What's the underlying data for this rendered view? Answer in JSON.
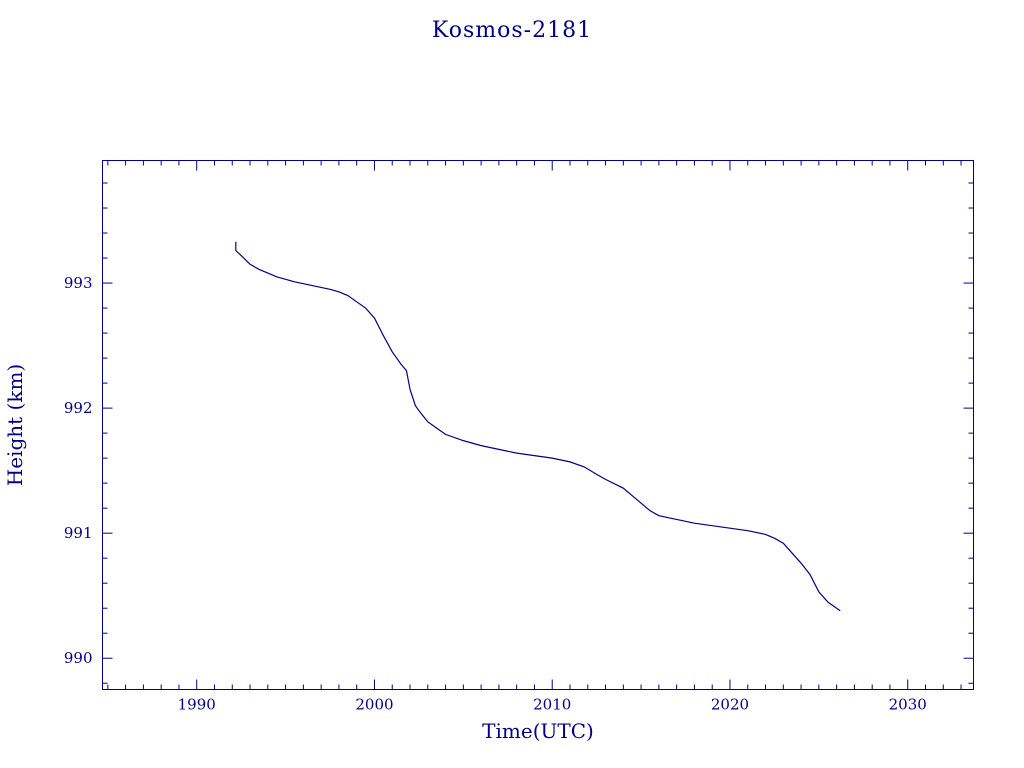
{
  "chart_data": {
    "type": "line",
    "title": "Kosmos-2181",
    "xlabel": "Time(UTC)",
    "ylabel": "Height (km)",
    "xlim": [
      1984.7,
      2033.7
    ],
    "ylim": [
      989.75,
      993.98
    ],
    "x_ticks": [
      1990,
      2000,
      2010,
      2020,
      2030
    ],
    "x_tick_labels": [
      "1990",
      "2000",
      "2010",
      "2020",
      "2030"
    ],
    "x_minor_step": 1,
    "y_ticks": [
      990,
      991,
      992,
      993
    ],
    "y_tick_labels": [
      "990",
      "991",
      "992",
      "993"
    ],
    "y_minor_step": 0.2,
    "grid": false,
    "color": "#00008b",
    "series": [
      {
        "x": [
          1992.2,
          1992.2,
          1992.5,
          1993.0,
          1993.5,
          1994.5,
          1995.5,
          1996.5,
          1997.5,
          1998.0,
          1998.5,
          1999.0,
          1999.5,
          2000.0,
          2000.5,
          2001.0,
          2001.5,
          2001.8,
          2002.0,
          2002.3,
          2002.5,
          2003.0,
          2003.5,
          2004.0,
          2005.0,
          2006.0,
          2007.0,
          2008.0,
          2009.0,
          2010.0,
          2011.0,
          2011.8,
          2012.5,
          2013.0,
          2014.0,
          2014.5,
          2015.0,
          2015.5,
          2016.0,
          2017.0,
          2018.0,
          2019.0,
          2020.0,
          2021.0,
          2022.0,
          2022.5,
          2023.0,
          2023.5,
          2024.0,
          2024.5,
          2025.0,
          2025.5,
          2026.2
        ],
        "y": [
          993.33,
          993.26,
          993.22,
          993.15,
          993.11,
          993.05,
          993.01,
          992.98,
          992.95,
          992.93,
          992.9,
          992.85,
          992.8,
          992.72,
          992.58,
          992.45,
          992.35,
          992.3,
          992.15,
          992.02,
          991.98,
          991.89,
          991.84,
          991.79,
          991.74,
          991.7,
          991.67,
          991.64,
          991.62,
          991.6,
          991.57,
          991.53,
          991.47,
          991.43,
          991.36,
          991.3,
          991.24,
          991.18,
          991.14,
          991.11,
          991.08,
          991.06,
          991.04,
          991.02,
          990.99,
          990.96,
          990.92,
          990.84,
          990.76,
          990.67,
          990.53,
          990.45,
          990.38
        ]
      }
    ]
  }
}
